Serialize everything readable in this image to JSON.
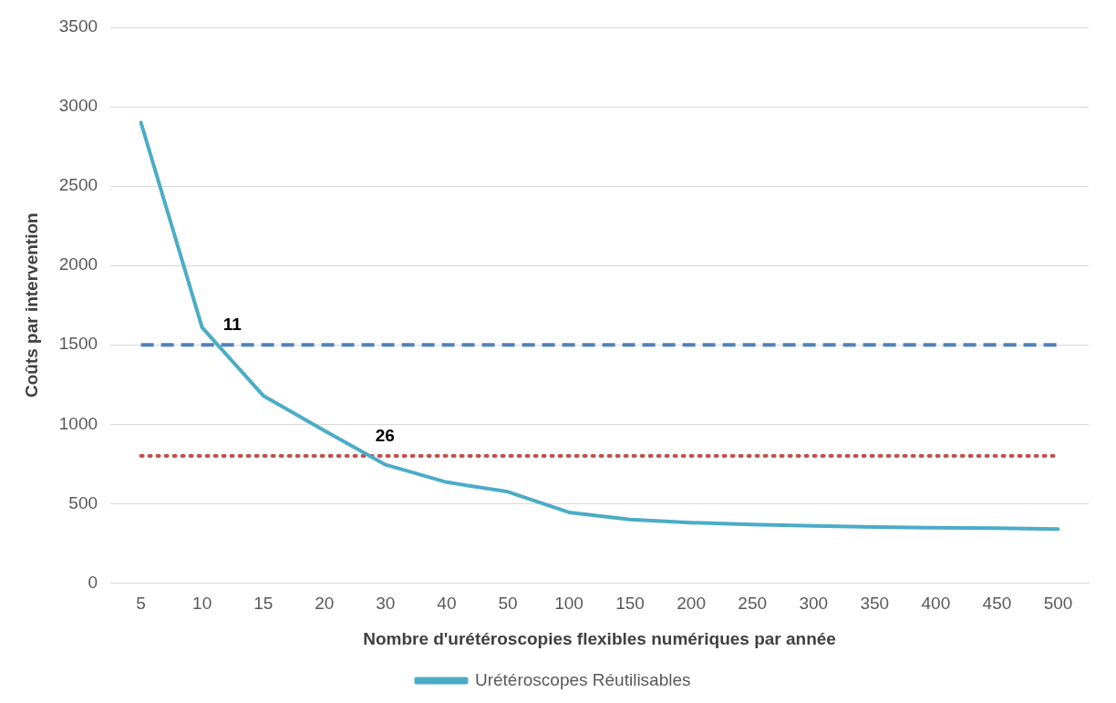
{
  "chart_data": {
    "type": "line",
    "xlabel": "Nombre d'urétéroscopies flexibles numériques par année",
    "ylabel": "Coûts par intervention",
    "categories": [
      "5",
      "10",
      "15",
      "20",
      "30",
      "40",
      "50",
      "100",
      "150",
      "200",
      "250",
      "300",
      "350",
      "400",
      "450",
      "500"
    ],
    "series": [
      {
        "name": "Urétéroscopes Réutilisables",
        "color": "#4bacc6",
        "line_style": "solid",
        "values": [
          2900,
          1610,
          1180,
          960,
          745,
          635,
          575,
          445,
          400,
          380,
          368,
          360,
          352,
          348,
          345,
          340
        ]
      },
      {
        "color": "#4f81bd",
        "line_style": "dashed",
        "values": [
          1500,
          1500,
          1500,
          1500,
          1500,
          1500,
          1500,
          1500,
          1500,
          1500,
          1500,
          1500,
          1500,
          1500,
          1500,
          1500
        ]
      },
      {
        "color": "#c0504d",
        "line_style": "dotted",
        "values": [
          800,
          800,
          800,
          800,
          800,
          800,
          800,
          800,
          800,
          800,
          800,
          800,
          800,
          800,
          800,
          800
        ]
      }
    ],
    "ylim": [
      0,
      3500
    ],
    "yticks": [
      0,
      500,
      1000,
      1500,
      2000,
      2500,
      3000,
      3500
    ],
    "grid": "y",
    "legend": "bottom",
    "marker": "none",
    "annotations": [
      {
        "text": "11",
        "y": 1500
      },
      {
        "text": "26",
        "y": 800
      }
    ]
  }
}
